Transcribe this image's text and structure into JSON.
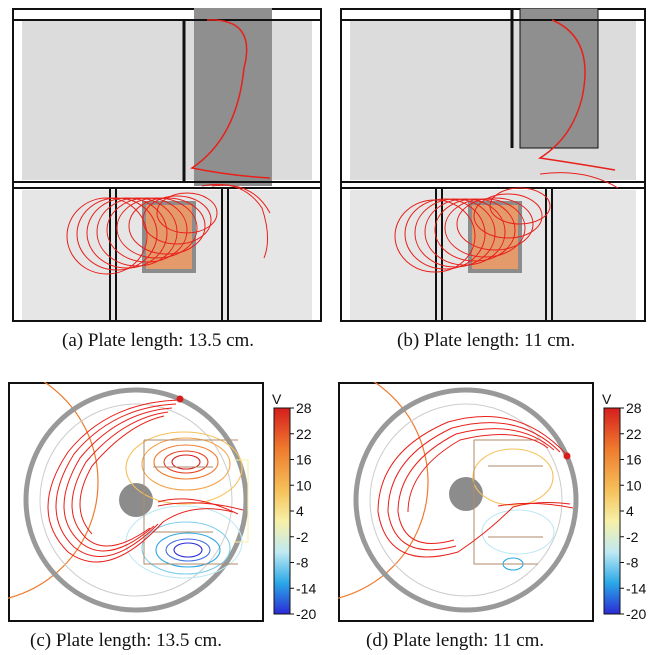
{
  "captions": {
    "a": "(a) Plate length: 13.5 cm.",
    "b": "(b) Plate length: 11 cm.",
    "c": "(c) Plate length: 13.5 cm.",
    "d": "(d) Plate length: 11 cm."
  },
  "colorbar": {
    "unit": "V",
    "ticks": [
      "28",
      "22",
      "16",
      "10",
      "4",
      "-2",
      "-8",
      "-14",
      "-20"
    ]
  },
  "colors": {
    "trajectory": "#e8201a",
    "plate": "#8c8c8c",
    "background_gray": "#d9d9d9",
    "colormap": [
      "#2b2bd6",
      "#2aa8e8",
      "#bfe9f2",
      "#f7f0a8",
      "#f5c15a",
      "#ef7b2e",
      "#d61e1e"
    ]
  }
}
